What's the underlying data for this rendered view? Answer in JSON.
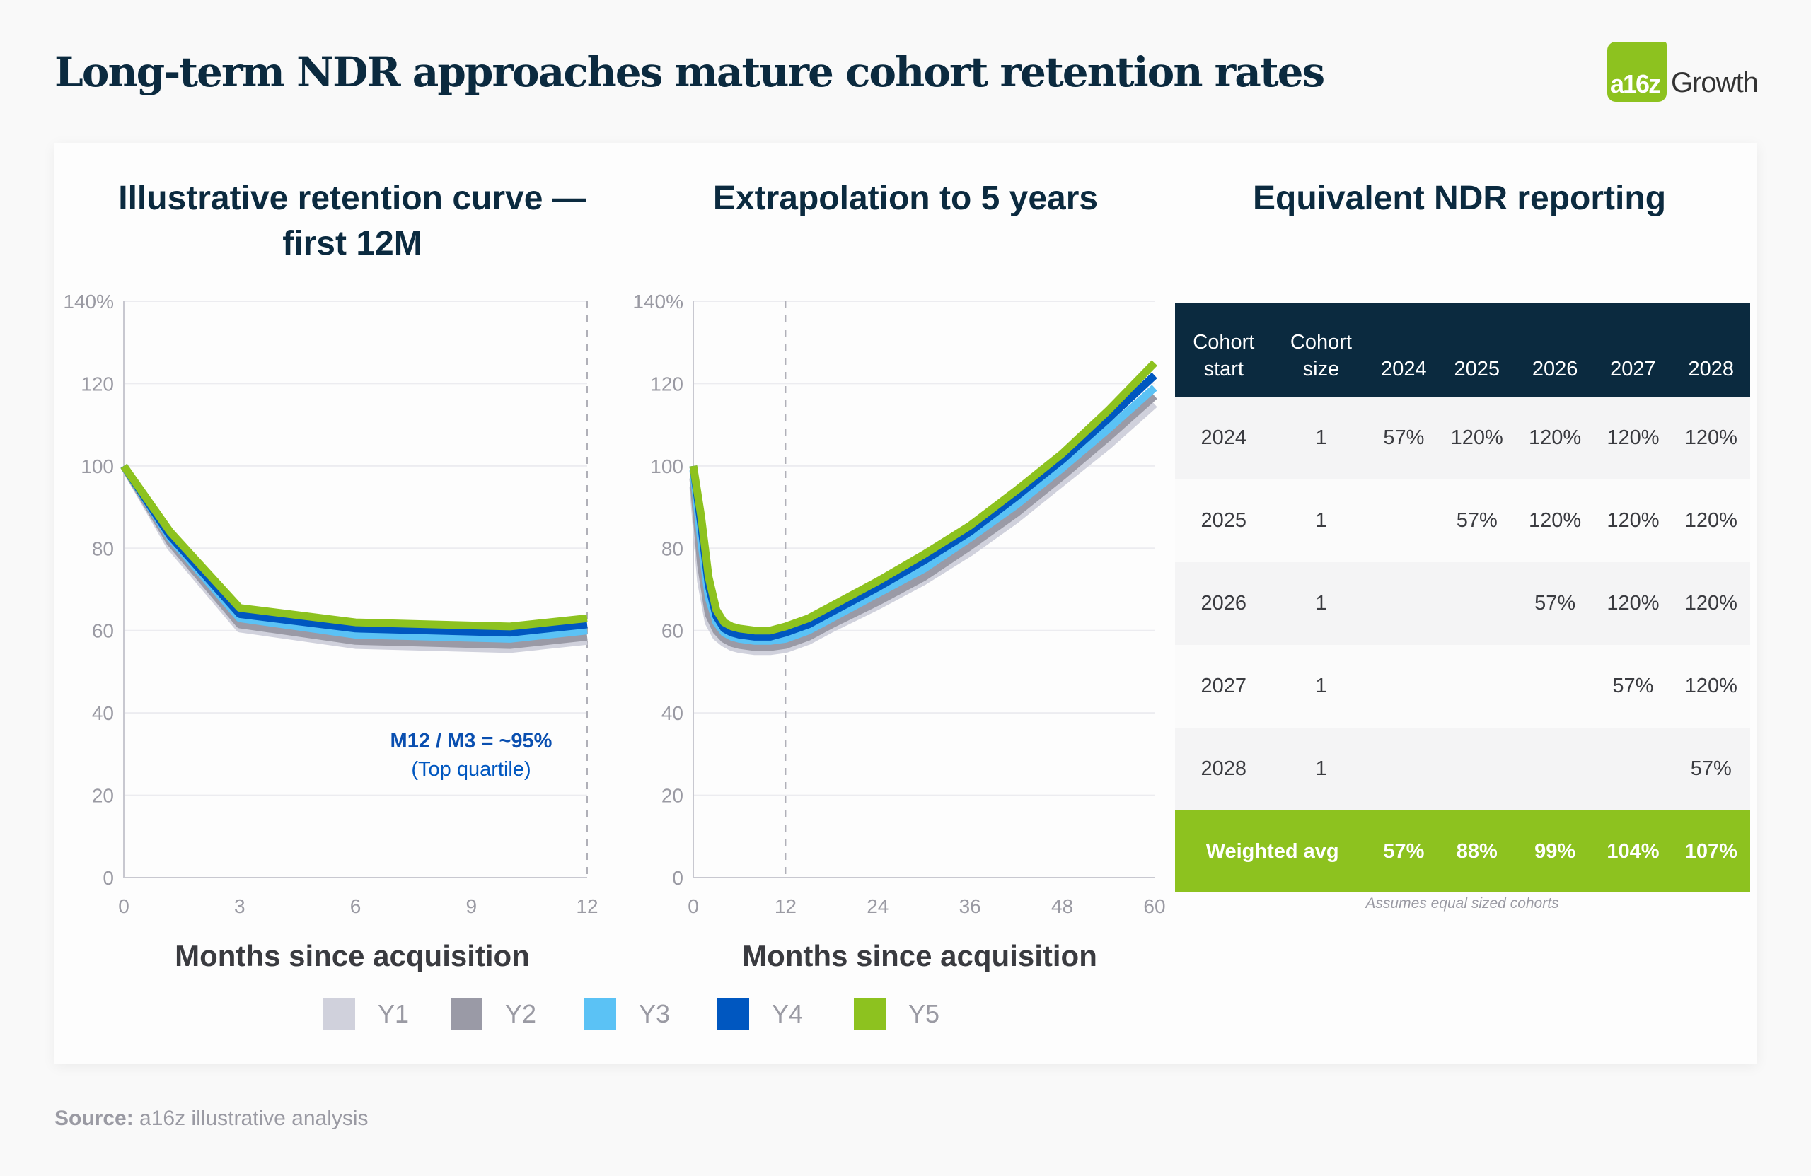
{
  "title": "Long-term NDR approaches mature cohort retention rates",
  "logo": {
    "mark": "a16z",
    "word": "Growth"
  },
  "source": {
    "label": "Source:",
    "text": "a16z illustrative analysis"
  },
  "colors": {
    "Y1": "#d0d1dc",
    "Y2": "#9a9aa6",
    "Y3": "#5bc2f5",
    "Y4": "#0057c0",
    "Y5": "#8dc21f",
    "navy": "#0b2a3f"
  },
  "legend": [
    "Y1",
    "Y2",
    "Y3",
    "Y4",
    "Y5"
  ],
  "chart_data": [
    {
      "type": "line",
      "title": "Illustrative retention curve — first 12M",
      "xlabel": "Months since acquisition",
      "ylabel": "",
      "xlim": [
        0,
        12
      ],
      "ylim": [
        0,
        140
      ],
      "xticks": [
        "0",
        "3",
        "6",
        "9",
        "12"
      ],
      "yticks": [
        "0",
        "20",
        "40",
        "60",
        "80",
        "100",
        "120",
        "140%"
      ],
      "grid": true,
      "reference_line_x": 12,
      "annotation": {
        "line1": "M12 / M3 = ~95%",
        "line2": "(Top quartile)"
      },
      "x": [
        0,
        1.2,
        3,
        6,
        10,
        12
      ],
      "series": [
        {
          "name": "Y1",
          "values": [
            100,
            80.5,
            60.5,
            56.5,
            55.5,
            57.5
          ]
        },
        {
          "name": "Y2",
          "values": [
            100,
            81.5,
            61.5,
            57.5,
            56.5,
            58.5
          ]
        },
        {
          "name": "Y3",
          "values": [
            100,
            82.5,
            63,
            59,
            58,
            60
          ]
        },
        {
          "name": "Y4",
          "values": [
            100,
            83,
            64,
            60.5,
            59.5,
            61.5
          ]
        },
        {
          "name": "Y5",
          "values": [
            100,
            84,
            65.5,
            62,
            61,
            63
          ]
        }
      ]
    },
    {
      "type": "line",
      "title": "Extrapolation to 5 years",
      "xlabel": "Months since acquisition",
      "ylabel": "",
      "xlim": [
        0,
        60
      ],
      "ylim": [
        0,
        140
      ],
      "xticks": [
        "0",
        "12",
        "24",
        "36",
        "48",
        "60"
      ],
      "yticks": [
        "0",
        "20",
        "40",
        "60",
        "80",
        "100",
        "120",
        "140%"
      ],
      "grid": true,
      "reference_line_x": 12,
      "x": [
        0,
        1,
        2,
        3,
        4,
        5,
        6,
        8,
        10,
        12,
        15,
        18,
        24,
        30,
        36,
        42,
        48,
        54,
        60
      ],
      "series": [
        {
          "name": "Y1",
          "values": [
            95,
            72,
            62,
            58.5,
            57,
            56,
            55.5,
            55,
            55,
            55.5,
            57.5,
            60.5,
            66,
            72,
            79,
            87,
            96,
            105,
            115
          ]
        },
        {
          "name": "Y2",
          "values": [
            97,
            76,
            64,
            60,
            58,
            57,
            56.5,
            56,
            56,
            56.5,
            58.5,
            61.5,
            67,
            73,
            80.5,
            88.5,
            97.5,
            107,
            117
          ]
        },
        {
          "name": "Y3",
          "values": [
            99,
            82,
            68,
            62,
            59.5,
            58.5,
            58,
            57.5,
            57.5,
            58,
            60,
            63,
            69,
            75,
            82.5,
            90.5,
            99.5,
            109,
            119
          ]
        },
        {
          "name": "Y4",
          "values": [
            100,
            86,
            71,
            63.5,
            60.5,
            59.5,
            59,
            58.5,
            58.5,
            59.5,
            61.5,
            64.5,
            70.5,
            77,
            84,
            92.5,
            101.5,
            111.5,
            122
          ]
        },
        {
          "name": "Y5",
          "values": [
            100,
            88,
            73,
            65,
            62,
            61,
            60.5,
            60,
            60,
            61,
            63,
            66,
            72,
            78.5,
            85.5,
            94,
            103,
            113.5,
            125
          ]
        }
      ]
    }
  ],
  "table": {
    "title": "Equivalent NDR reporting",
    "headers": [
      {
        "line1": "Cohort",
        "line2": "start"
      },
      {
        "line1": "Cohort",
        "line2": "size"
      },
      {
        "line1": "",
        "line2": "2024"
      },
      {
        "line1": "",
        "line2": "2025"
      },
      {
        "line1": "",
        "line2": "2026"
      },
      {
        "line1": "",
        "line2": "2027"
      },
      {
        "line1": "",
        "line2": "2028"
      }
    ],
    "rows": [
      [
        "2024",
        "1",
        "57%",
        "120%",
        "120%",
        "120%",
        "120%"
      ],
      [
        "2025",
        "1",
        "",
        "57%",
        "120%",
        "120%",
        "120%"
      ],
      [
        "2026",
        "1",
        "",
        "",
        "57%",
        "120%",
        "120%"
      ],
      [
        "2027",
        "1",
        "",
        "",
        "",
        "57%",
        "120%"
      ],
      [
        "2028",
        "1",
        "",
        "",
        "",
        "",
        "57%"
      ]
    ],
    "total": {
      "label": "Weighted avg",
      "values": [
        "57%",
        "88%",
        "99%",
        "104%",
        "107%"
      ]
    },
    "note": "Assumes equal sized cohorts"
  }
}
